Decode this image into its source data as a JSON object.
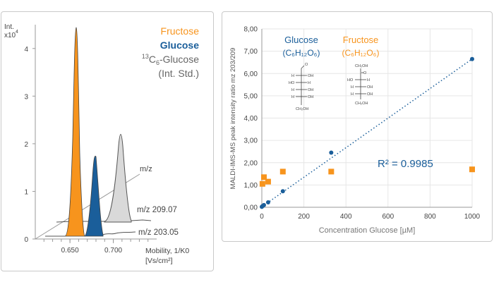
{
  "colors": {
    "fructose": "#f7941d",
    "glucose": "#1a5e9a",
    "standard": "#d9d9d9",
    "grid": "#e6e6e6"
  },
  "left_panel": {
    "y_axis_label_1": "Int.",
    "y_axis_label_2": "x10",
    "y_axis_exponent": "4",
    "legend": {
      "fructose": "Fructose",
      "glucose": "Glucose",
      "standard_line1_prefix": "13",
      "standard_line1_main": "C",
      "standard_line1_sub": "6",
      "standard_line1_suffix": "-Glucose",
      "standard_line2": "(Int. Std.)"
    },
    "mz_axis_label": "m/z",
    "trace_label_1": "m/z 209.07",
    "trace_label_2": "m/z 203.05",
    "x_axis_label_1": "Mobility, 1/K0",
    "x_axis_label_2": "[Vs/cm²]"
  },
  "right_panel": {
    "glucose_name": "Glucose",
    "glucose_formula": "(C₆H₁₂O₆)",
    "fructose_name": "Fructose",
    "fructose_formula": "(C₆H₁₂O₆)",
    "r_squared": "R² = 0.9985",
    "molecule": {
      "aldehyde": "O",
      "ketone": "O",
      "h": "H",
      "oh": "OH",
      "ho": "HO",
      "ch2oh": "CH₂OH"
    }
  },
  "chart_data": [
    {
      "type": "area",
      "xlabel": "Mobility, 1/K0 [Vs/cm²]",
      "ylabel": "Int. x10⁴",
      "xlim": [
        0.61,
        0.75
      ],
      "ylim": [
        0,
        4.5
      ],
      "x_ticks": [
        0.65,
        0.7
      ],
      "x_tick_labels": [
        "0.650",
        "0.700"
      ],
      "y_ticks": [
        0,
        1,
        2,
        3,
        4
      ],
      "y_tick_labels": [
        "0",
        "1",
        "2",
        "3",
        "4"
      ],
      "series": [
        {
          "name": "Fructose",
          "trace": "m/z 203.05",
          "peak_mobility": 0.653,
          "peak_intensity": 4.6
        },
        {
          "name": "Glucose",
          "trace": "m/z 203.05",
          "peak_mobility": 0.676,
          "peak_intensity": 1.9
        },
        {
          "name": "13C6-Glucose (Int. Std.)",
          "trace": "m/z 209.07",
          "peak_mobility": 0.71,
          "peak_intensity": 2.4
        }
      ]
    },
    {
      "type": "scatter",
      "xlabel": "Concentration Glucose [µM]",
      "ylabel": "MALDI-IMS-MS peak intensity ratio mz 203/209",
      "xlim": [
        0,
        1000
      ],
      "ylim": [
        0,
        8
      ],
      "x_ticks": [
        0,
        200,
        400,
        600,
        800,
        1000
      ],
      "x_tick_labels": [
        "0",
        "200",
        "400",
        "600",
        "800",
        "1000"
      ],
      "y_ticks": [
        0,
        1,
        2,
        3,
        4,
        5,
        6,
        7,
        8
      ],
      "y_tick_labels": [
        "0,00",
        "1,00",
        "2,00",
        "3,00",
        "4,00",
        "5,00",
        "6,00",
        "7,00",
        "8,00"
      ],
      "grid": true,
      "series": [
        {
          "name": "Glucose",
          "x": [
            0,
            3,
            10,
            30,
            100,
            330,
            1000
          ],
          "y": [
            0.02,
            0.05,
            0.1,
            0.22,
            0.72,
            2.45,
            6.65
          ]
        },
        {
          "name": "Fructose",
          "x": [
            3,
            10,
            30,
            100,
            330,
            1000
          ],
          "y": [
            1.05,
            1.35,
            1.15,
            1.6,
            1.6,
            1.7
          ]
        }
      ],
      "trendline": {
        "series": "Glucose",
        "x": [
          0,
          1000
        ],
        "y": [
          0.02,
          6.65
        ],
        "r_squared": 0.9985
      }
    }
  ]
}
